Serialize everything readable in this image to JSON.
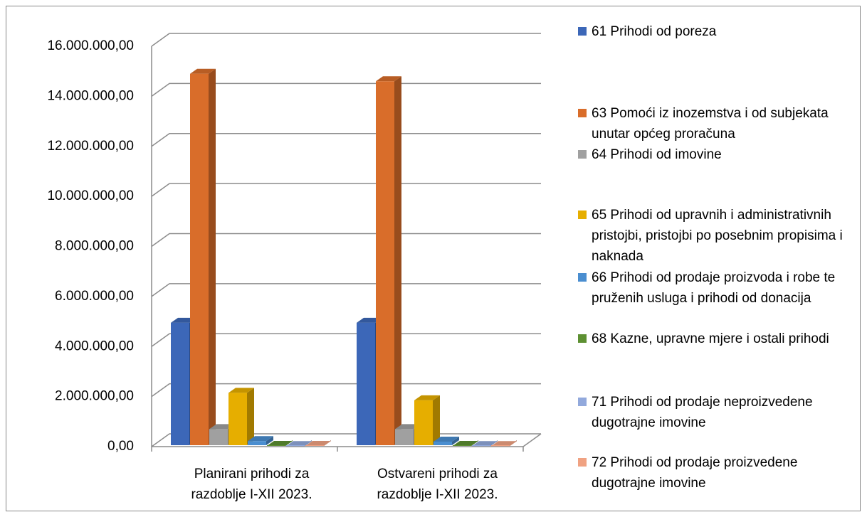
{
  "chart_data": {
    "type": "bar3d",
    "categories": [
      "Planirani prihodi za razdoblje I-XII 2023.",
      "Ostvareni prihodi za razdoblje I-XII 2023."
    ],
    "series": [
      {
        "name": "61 Prihodi od poreza",
        "color": "#3c67b8",
        "values": [
          4950000,
          4950000
        ]
      },
      {
        "name": "63 Pomoći iz inozemstva i od subjekata unutar općeg proračuna",
        "color": "#d96d2a",
        "values": [
          14900000,
          14600000
        ]
      },
      {
        "name": "64 Prihodi od imovine",
        "color": "#a0a0a0",
        "values": [
          700000,
          700000
        ]
      },
      {
        "name": "65 Prihodi od upravnih i administrativnih pristojbi, pristojbi po posebnim propisima i naknada",
        "color": "#e6ae00",
        "values": [
          2150000,
          1850000
        ]
      },
      {
        "name": "66 Prihodi od prodaje proizvoda i robe te pruženih usluga i prihodi od donacija",
        "color": "#4a8ed0",
        "values": [
          220000,
          200000
        ]
      },
      {
        "name": "68 Kazne, upravne mjere i ostali prihodi",
        "color": "#5d9032",
        "values": [
          30000,
          30000
        ]
      },
      {
        "name": "71 Prihodi od prodaje neproizvedene dugotrajne imovine",
        "color": "#92a9dc",
        "values": [
          20000,
          20000
        ]
      },
      {
        "name": "72 Prihodi od prodaje proizvedene dugotrajne imovine",
        "color": "#f0a282",
        "values": [
          30000,
          20000
        ]
      }
    ],
    "ylim": [
      0,
      16000000
    ],
    "yticks": [
      {
        "value": 0,
        "label": "0,00"
      },
      {
        "value": 2000000,
        "label": "2.000.000,00"
      },
      {
        "value": 4000000,
        "label": "4.000.000,00"
      },
      {
        "value": 6000000,
        "label": "6.000.000,00"
      },
      {
        "value": 8000000,
        "label": "8.000.000,00"
      },
      {
        "value": 10000000,
        "label": "10.000.000,00"
      },
      {
        "value": 12000000,
        "label": "12.000.000,00"
      },
      {
        "value": 14000000,
        "label": "14.000.000,00"
      },
      {
        "value": 16000000,
        "label": "16.000.000,00"
      }
    ],
    "grid": true,
    "legend": "right"
  }
}
